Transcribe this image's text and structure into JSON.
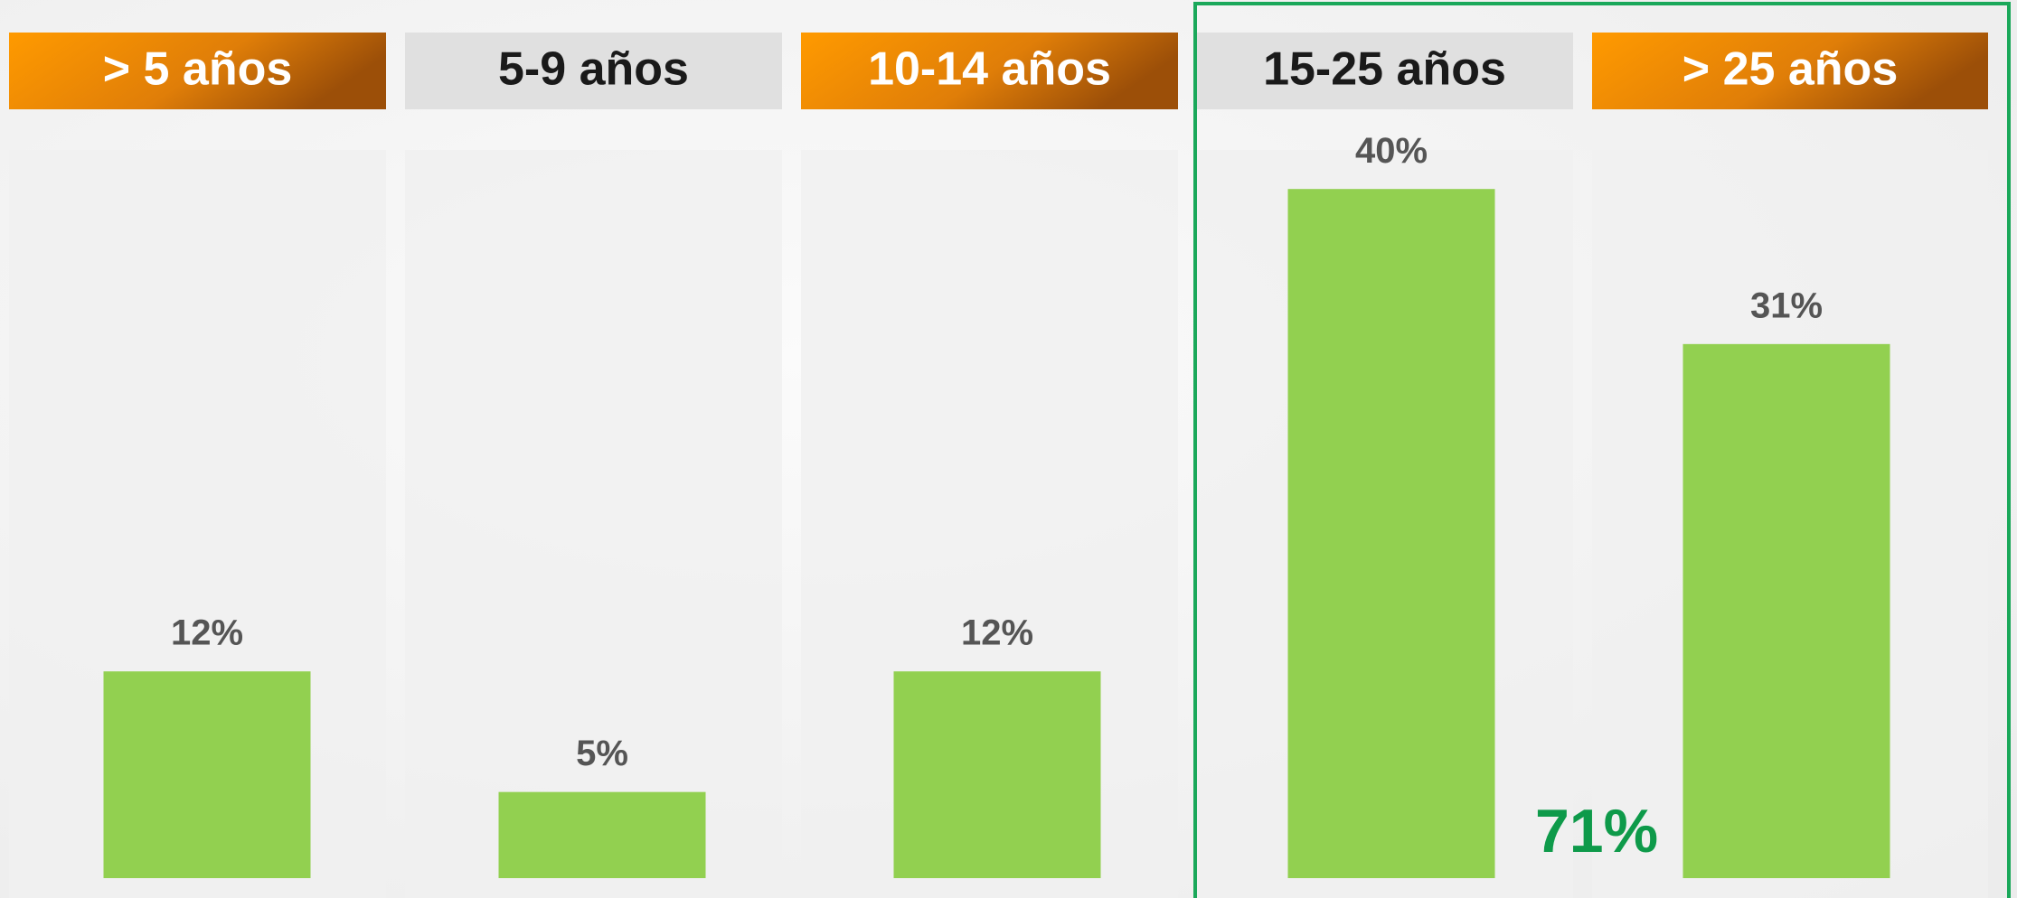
{
  "chart_data": {
    "type": "bar",
    "categories": [
      "> 5 años",
      "5-9 años",
      "10-14 años",
      "15-25 años",
      "> 25 años"
    ],
    "values": [
      12,
      5,
      12,
      40,
      31
    ],
    "value_labels": [
      "12%",
      "5%",
      "12%",
      "40%",
      "31%"
    ],
    "color": "#92d050",
    "annotation": "71%"
  }
}
